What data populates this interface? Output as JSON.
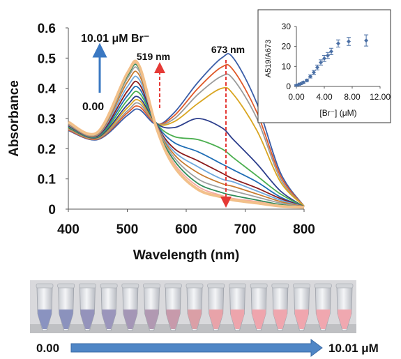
{
  "chart_data": [
    {
      "type": "line",
      "xlabel": "Wavelength (nm)",
      "ylabel": "Absorbance",
      "xlim": [
        400,
        800
      ],
      "ylim": [
        0,
        0.6
      ],
      "x_ticks": [
        "400",
        "500",
        "600",
        "700",
        "800"
      ],
      "y_ticks": [
        "0",
        "0.1",
        "0.2",
        "0.3",
        "0.4",
        "0.5",
        "0.6"
      ],
      "grid": false,
      "legend": "none",
      "annotations": {
        "peak1": "519 nm",
        "peak2": "673 nm",
        "start": "0.00",
        "end": "10.01 μM Br⁻"
      },
      "arrow_color": "#e53935",
      "conc_arrow_color": "#3a78c2",
      "x": [
        400,
        450,
        500,
        520,
        550,
        580,
        620,
        660,
        680,
        720,
        760,
        800
      ],
      "series": [
        {
          "color": "#3b5ea8",
          "values": [
            0.26,
            0.23,
            0.31,
            0.33,
            0.28,
            0.32,
            0.42,
            0.5,
            0.5,
            0.35,
            0.12,
            0.01
          ]
        },
        {
          "color": "#e05a2a",
          "values": [
            0.262,
            0.232,
            0.318,
            0.34,
            0.282,
            0.31,
            0.4,
            0.47,
            0.46,
            0.32,
            0.11,
            0.01
          ]
        },
        {
          "color": "#9a9a9a",
          "values": [
            0.265,
            0.234,
            0.325,
            0.35,
            0.283,
            0.3,
            0.38,
            0.44,
            0.43,
            0.3,
            0.1,
            0.01
          ]
        },
        {
          "color": "#d9a520",
          "values": [
            0.268,
            0.236,
            0.335,
            0.36,
            0.284,
            0.29,
            0.35,
            0.4,
            0.38,
            0.26,
            0.09,
            0.01
          ]
        },
        {
          "color": "#2c3e8c",
          "values": [
            0.27,
            0.238,
            0.345,
            0.37,
            0.284,
            0.27,
            0.3,
            0.27,
            0.23,
            0.15,
            0.06,
            0.008
          ]
        },
        {
          "color": "#4caf50",
          "values": [
            0.272,
            0.24,
            0.36,
            0.385,
            0.282,
            0.24,
            0.23,
            0.2,
            0.17,
            0.11,
            0.05,
            0.008
          ]
        },
        {
          "color": "#1e6db5",
          "values": [
            0.275,
            0.242,
            0.375,
            0.4,
            0.28,
            0.22,
            0.19,
            0.15,
            0.13,
            0.09,
            0.04,
            0.008
          ]
        },
        {
          "color": "#8b1a1a",
          "values": [
            0.277,
            0.244,
            0.39,
            0.415,
            0.278,
            0.2,
            0.16,
            0.12,
            0.1,
            0.07,
            0.035,
            0.008
          ]
        },
        {
          "color": "#6fa8dc",
          "values": [
            0.279,
            0.246,
            0.405,
            0.43,
            0.276,
            0.19,
            0.14,
            0.1,
            0.09,
            0.06,
            0.03,
            0.008
          ]
        },
        {
          "color": "#c77b30",
          "values": [
            0.281,
            0.248,
            0.42,
            0.445,
            0.274,
            0.18,
            0.12,
            0.085,
            0.075,
            0.05,
            0.025,
            0.008
          ]
        },
        {
          "color": "#a0a0a0",
          "values": [
            0.283,
            0.25,
            0.432,
            0.458,
            0.272,
            0.17,
            0.1,
            0.07,
            0.06,
            0.04,
            0.02,
            0.007
          ]
        },
        {
          "color": "#2e8b57",
          "values": [
            0.285,
            0.252,
            0.44,
            0.466,
            0.27,
            0.16,
            0.085,
            0.055,
            0.045,
            0.03,
            0.015,
            0.007
          ]
        },
        {
          "color": "#f4a9a0",
          "values": [
            0.286,
            0.253,
            0.445,
            0.47,
            0.268,
            0.15,
            0.075,
            0.045,
            0.035,
            0.025,
            0.012,
            0.006
          ]
        },
        {
          "color": "#f2c08a",
          "values": [
            0.288,
            0.255,
            0.45,
            0.475,
            0.266,
            0.14,
            0.065,
            0.04,
            0.03,
            0.02,
            0.01,
            0.006
          ]
        }
      ]
    },
    {
      "type": "scatter",
      "xlabel": "[Br⁻] (μM)",
      "ylabel": "A519/A673",
      "xlim": [
        0,
        12
      ],
      "ylim": [
        0,
        30
      ],
      "x_ticks": [
        "0.00",
        "4.00",
        "8.00",
        "12.00"
      ],
      "y_ticks": [
        "0",
        "10",
        "20",
        "30"
      ],
      "grid": false,
      "color": "#4a6fa5",
      "x": [
        0.0,
        0.3,
        0.6,
        1.0,
        1.5,
        2.0,
        2.5,
        3.0,
        3.5,
        4.0,
        4.5,
        5.0,
        6.0,
        7.5,
        10.01
      ],
      "values": [
        0.6,
        0.9,
        1.3,
        2.0,
        3.0,
        5.0,
        7.0,
        9.5,
        12.0,
        14.0,
        15.5,
        17.5,
        21.5,
        22.5,
        23.0
      ],
      "errors": [
        0.3,
        0.3,
        0.4,
        0.5,
        0.6,
        0.8,
        1.0,
        1.2,
        1.3,
        1.5,
        1.5,
        1.6,
        1.8,
        2.0,
        2.8
      ]
    }
  ],
  "photo": {
    "tube_count": 15,
    "tube_colors": [
      "#8a93c0",
      "#8b92bd",
      "#9493bb",
      "#9a95bb",
      "#a496b6",
      "#b199b2",
      "#c79aab",
      "#da9fa6",
      "#e8a3a9",
      "#eda5ac",
      "#efa5ad",
      "#efa6ae",
      "#f0a6ae",
      "#f0a7af",
      "#f0a8b0"
    ],
    "label_start": "0.00",
    "label_end": "10.01 μM",
    "arrow_color": "#4f86c6"
  }
}
